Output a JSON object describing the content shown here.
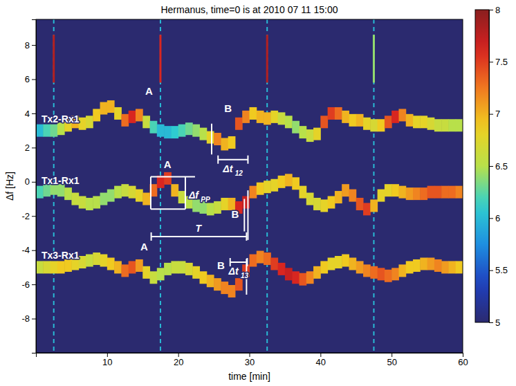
{
  "chart_data": {
    "type": "heatmap",
    "title": "Hermanus, time=0 is at 2010 07 11 15:00",
    "x_label": "time [min]",
    "y_label": "Δf [Hz]",
    "xlim": [
      0,
      60
    ],
    "xticks": [
      10,
      20,
      30,
      40,
      50,
      60
    ],
    "ylim": [
      -10,
      9.5
    ],
    "yticks": [
      -8,
      -6,
      -4,
      -2,
      0,
      2,
      4,
      6,
      8
    ],
    "colorbar": {
      "range": [
        5,
        8
      ],
      "ticks": [
        5,
        5.5,
        6,
        6.5,
        7,
        7.5,
        8
      ]
    },
    "x": [
      0.5,
      1.5,
      2.5,
      3.5,
      4.5,
      5.5,
      6.5,
      7.5,
      8.5,
      9.5,
      10.5,
      11.5,
      12.5,
      13.5,
      14.5,
      15.5,
      16.5,
      17.5,
      18.5,
      19.5,
      20.5,
      21.5,
      22.5,
      23.5,
      24.5,
      25.5,
      26.5,
      27.5,
      28.5,
      29.5,
      30.5,
      31.5,
      32.5,
      33.5,
      34.5,
      35.5,
      36.5,
      37.5,
      38.5,
      39.5,
      40.5,
      41.5,
      42.5,
      43.5,
      44.5,
      45.5,
      46.5,
      47.5,
      48.5,
      49.5,
      50.5,
      51.5,
      52.5,
      53.5,
      54.5,
      55.5,
      56.5,
      57.5,
      58.5,
      59.5
    ],
    "series": [
      {
        "name": "Tx2-Rx1",
        "values": [
          3.0,
          3.0,
          3.0,
          3.1,
          3.3,
          3.5,
          3.4,
          3.5,
          3.9,
          4.3,
          4.4,
          4.0,
          3.6,
          3.8,
          3.9,
          3.5,
          3.2,
          3.0,
          2.9,
          2.9,
          3.0,
          3.1,
          3.0,
          2.8,
          2.6,
          2.5,
          2.2,
          2.3,
          3.4,
          3.8,
          4.0,
          3.8,
          3.7,
          3.8,
          3.7,
          3.5,
          3.2,
          2.9,
          2.7,
          2.8,
          3.5,
          4.0,
          4.0,
          3.8,
          3.6,
          3.6,
          3.4,
          3.3,
          3.3,
          3.5,
          3.8,
          3.9,
          3.6,
          3.5,
          3.5,
          3.4,
          3.3,
          3.3,
          3.3,
          3.3
        ],
        "intensity": [
          6.0,
          6.2,
          6.3,
          6.5,
          6.8,
          7.0,
          6.8,
          6.7,
          6.9,
          7.0,
          7.0,
          6.8,
          7.3,
          7.6,
          7.2,
          6.6,
          6.2,
          6.0,
          6.0,
          6.1,
          6.2,
          6.3,
          6.4,
          6.5,
          6.8,
          7.2,
          7.0,
          6.9,
          7.4,
          7.2,
          6.9,
          7.0,
          7.0,
          6.8,
          6.6,
          6.5,
          6.4,
          6.5,
          6.6,
          6.8,
          7.4,
          7.5,
          7.3,
          7.0,
          6.9,
          7.0,
          6.8,
          6.7,
          6.9,
          7.4,
          7.6,
          7.2,
          7.0,
          6.8,
          6.8,
          6.7,
          6.6,
          6.6,
          6.5,
          6.5
        ]
      },
      {
        "name": "Tx1-Rx1",
        "values": [
          -0.6,
          -0.5,
          -0.4,
          -0.5,
          -0.7,
          -1.0,
          -1.2,
          -1.3,
          -1.2,
          -1.0,
          -0.8,
          -0.6,
          -0.5,
          -0.6,
          -0.8,
          -1.0,
          -0.5,
          0.0,
          0.2,
          -0.5,
          -0.9,
          -1.2,
          -1.4,
          -1.5,
          -1.6,
          -1.5,
          -1.3,
          -1.3,
          -1.5,
          -1.2,
          -0.6,
          -0.4,
          -0.3,
          -0.2,
          0.0,
          0.1,
          -0.1,
          -0.6,
          -1.0,
          -1.3,
          -1.4,
          -1.2,
          -0.9,
          -0.5,
          -0.8,
          -1.3,
          -1.6,
          -1.4,
          -0.8,
          -0.5,
          -0.5,
          -0.6,
          -0.7,
          -0.7,
          -0.7,
          -0.6,
          -0.6,
          -0.6,
          -0.6,
          -0.6
        ],
        "intensity": [
          6.2,
          6.3,
          6.4,
          6.4,
          6.5,
          6.6,
          6.6,
          6.5,
          6.5,
          6.4,
          6.4,
          6.5,
          6.6,
          6.7,
          6.8,
          7.0,
          7.3,
          7.6,
          7.5,
          7.0,
          6.6,
          6.5,
          6.4,
          6.4,
          6.5,
          6.6,
          6.8,
          7.0,
          7.6,
          7.7,
          7.2,
          6.9,
          6.8,
          6.8,
          6.9,
          7.0,
          6.9,
          6.8,
          6.7,
          6.7,
          6.8,
          6.9,
          7.0,
          7.1,
          7.2,
          7.4,
          7.5,
          7.0,
          6.8,
          6.8,
          6.9,
          7.0,
          7.1,
          7.2,
          7.3,
          7.4,
          7.4,
          7.3,
          7.3,
          7.2
        ]
      },
      {
        "name": "Tx3-Rx1",
        "values": [
          -5.0,
          -5.0,
          -5.0,
          -5.0,
          -4.9,
          -4.8,
          -4.7,
          -4.6,
          -4.5,
          -4.6,
          -4.8,
          -5.0,
          -5.2,
          -5.0,
          -4.9,
          -5.3,
          -5.6,
          -5.4,
          -5.1,
          -5.0,
          -5.0,
          -5.1,
          -5.3,
          -5.6,
          -5.8,
          -6.0,
          -6.2,
          -6.4,
          -6.0,
          -5.2,
          -4.6,
          -4.4,
          -4.5,
          -4.8,
          -5.1,
          -5.4,
          -5.6,
          -5.7,
          -5.6,
          -5.3,
          -5.0,
          -4.8,
          -4.7,
          -4.6,
          -4.8,
          -5.0,
          -5.2,
          -5.3,
          -5.4,
          -5.5,
          -5.4,
          -5.2,
          -5.0,
          -4.9,
          -4.8,
          -4.8,
          -4.9,
          -5.0,
          -5.0,
          -5.0
        ],
        "intensity": [
          6.6,
          6.7,
          6.8,
          6.9,
          6.9,
          6.8,
          6.7,
          6.6,
          6.7,
          6.8,
          6.9,
          7.0,
          7.3,
          7.4,
          7.1,
          6.8,
          6.6,
          6.5,
          6.5,
          6.6,
          6.6,
          6.7,
          6.8,
          6.9,
          7.0,
          7.1,
          7.2,
          7.2,
          7.4,
          7.5,
          7.3,
          7.2,
          7.3,
          7.5,
          7.6,
          7.7,
          7.6,
          7.4,
          7.2,
          7.0,
          6.9,
          6.8,
          6.8,
          6.9,
          7.0,
          7.1,
          7.2,
          7.3,
          7.4,
          7.3,
          7.2,
          7.0,
          6.9,
          6.9,
          7.0,
          7.1,
          7.2,
          7.1,
          7.0,
          6.9
        ]
      }
    ],
    "spikes": {
      "x": [
        2.5,
        17.5,
        32.5,
        47.5
      ],
      "intensity": [
        6.0,
        6.0,
        6.0,
        6.0
      ],
      "peak_from": 5.8,
      "peak_to": 8.6,
      "peak_intensity": [
        7.8,
        7.6,
        7.8,
        6.4
      ]
    },
    "annotations": [
      {
        "text": "A",
        "x": 15.9,
        "y": 5.3
      },
      {
        "text": "B",
        "x": 27.0,
        "y": 4.3
      },
      {
        "text": "A",
        "x": 18.5,
        "y": 1.0
      },
      {
        "text": "B",
        "x": 28.0,
        "y": -1.9
      },
      {
        "text": "A",
        "x": 15.2,
        "y": -3.8
      },
      {
        "text": "B",
        "x": 26.0,
        "y": -4.9
      }
    ],
    "brackets": [
      {
        "label": "Δf",
        "subscript": "PP",
        "x": 21.0,
        "from": -1.6,
        "to": 0.3
      },
      {
        "label": "T",
        "from": 16.2,
        "to": 29.6,
        "y": -3.2
      },
      {
        "label": "Δt",
        "subscript": "12",
        "from": 25.6,
        "to": 29.8,
        "y": 1.3
      },
      {
        "label": "Δt",
        "subscript": "13",
        "from": 27.3,
        "to": 29.7,
        "y": -4.7
      }
    ],
    "marker_lines": [
      {
        "x": 24.7,
        "from": 1.6,
        "to": 3.4
      },
      {
        "x": 29.3,
        "from": -2.9,
        "to": -1.0
      },
      {
        "x": 29.8,
        "from": -3.4,
        "to": -0.5
      },
      {
        "x": 29.6,
        "from": -6.6,
        "to": -4.5
      }
    ]
  }
}
